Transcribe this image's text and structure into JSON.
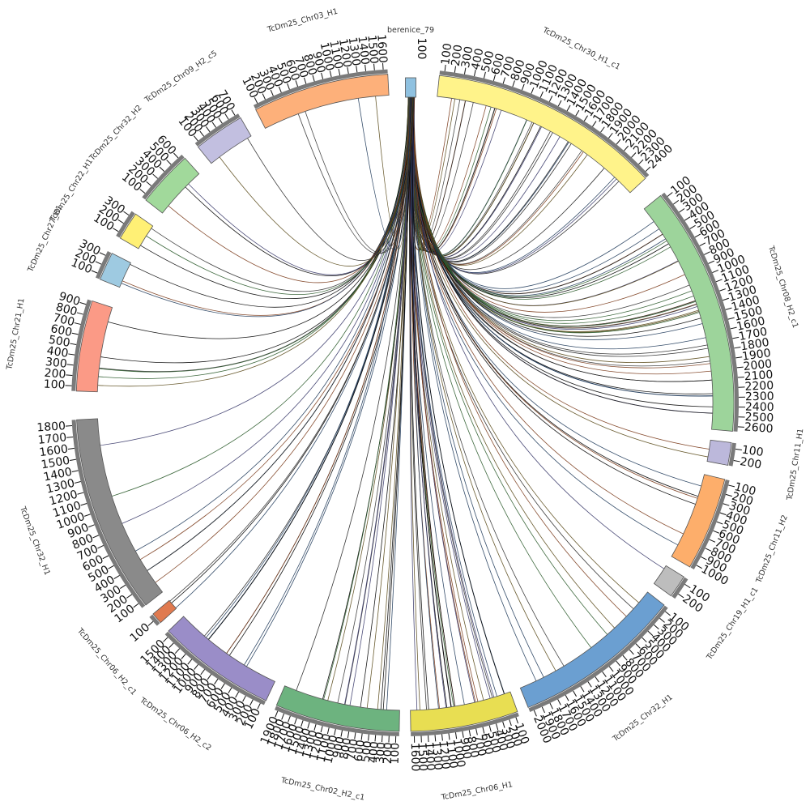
{
  "diagram": {
    "type": "circos",
    "hub": {
      "name": "berenice_79",
      "ticks": [
        "100"
      ],
      "color": "#8fc1e0"
    },
    "segments": [
      {
        "name": "TcDm25_Chr30_H1_c1",
        "start_deg": 6,
        "end_deg": 47,
        "color": "#fff38a",
        "ticks": [
          "100",
          "200",
          "300",
          "400",
          "500",
          "600",
          "700",
          "800",
          "900",
          "1000",
          "1100",
          "1200",
          "1300",
          "1400",
          "1500",
          "1600",
          "1700",
          "1800",
          "1900",
          "2000",
          "2100",
          "2200",
          "2300",
          "2400"
        ]
      },
      {
        "name": "TcDm25_Chr08_H2_c1",
        "start_deg": 51,
        "end_deg": 95,
        "color": "#9dd49b",
        "ticks": [
          "100",
          "200",
          "300",
          "400",
          "500",
          "600",
          "700",
          "800",
          "900",
          "1000",
          "1100",
          "1200",
          "1300",
          "1400",
          "1500",
          "1600",
          "1700",
          "1800",
          "1900",
          "2000",
          "2100",
          "2200",
          "2300",
          "2400",
          "2500",
          "2600"
        ]
      },
      {
        "name": "TcDm25_Chr11_H1",
        "start_deg": 97,
        "end_deg": 101,
        "color": "#bcb8db",
        "ticks": [
          "100",
          "200"
        ]
      },
      {
        "name": "TcDm25_Chr11_H2",
        "start_deg": 103.5,
        "end_deg": 120,
        "color": "#fdae6b",
        "ticks": [
          "100",
          "200",
          "300",
          "400",
          "500",
          "600",
          "700",
          "800",
          "900",
          "1000"
        ]
      },
      {
        "name": "TcDm25_Chr19_H1_c1",
        "start_deg": 122,
        "end_deg": 126,
        "color": "#bdbdbd",
        "ticks": [
          "100",
          "200"
        ]
      },
      {
        "name": "TcDm25_Chr32_H1",
        "start_deg": 128,
        "end_deg": 158,
        "color": "#6b9fd1",
        "ticks": [
          "100",
          "200",
          "300",
          "400",
          "500",
          "600",
          "700",
          "800",
          "900",
          "1000",
          "1100",
          "1200",
          "1300",
          "1400",
          "1500",
          "1600",
          "1700",
          "1800",
          "1900",
          "2000"
        ]
      },
      {
        "name": "TcDm25_Chr06_H1",
        "start_deg": 160,
        "end_deg": 179,
        "color": "#e8de52",
        "ticks": [
          "100",
          "200",
          "300",
          "400",
          "500",
          "600",
          "700",
          "800",
          "900",
          "1000",
          "1100",
          "1200",
          "1300",
          "1400",
          "1500",
          "1600"
        ]
      },
      {
        "name": "TcDm25_Chr02_H2_c1",
        "start_deg": 181,
        "end_deg": 203,
        "color": "#6db37f",
        "ticks": [
          "100",
          "200",
          "300",
          "400",
          "500",
          "600",
          "700",
          "800",
          "900",
          "1000",
          "1100",
          "1200",
          "1300",
          "1400",
          "1500",
          "1600",
          "1700",
          "1800",
          "1900"
        ]
      },
      {
        "name": "TcDm25_Chr06_H2_c2",
        "start_deg": 205,
        "end_deg": 226,
        "color": "#9a8dc8",
        "ticks": [
          "100",
          "200",
          "300",
          "400",
          "500",
          "600",
          "700",
          "800",
          "900",
          "1000",
          "1100",
          "1200",
          "1300",
          "1400",
          "1500"
        ]
      },
      {
        "name": "TcDm25_Chr06_H2_c1",
        "start_deg": 228,
        "end_deg": 230,
        "color": "#e07a4f",
        "ticks": [
          "100"
        ]
      },
      {
        "name": "TcDm25_Chr32_H1",
        "start_deg": 232,
        "end_deg": 267,
        "color": "#8a8a8a",
        "ticks": [
          "100",
          "200",
          "300",
          "400",
          "500",
          "600",
          "700",
          "800",
          "900",
          "1000",
          "1100",
          "1200",
          "1300",
          "1400",
          "1500",
          "1600",
          "1700",
          "1800"
        ]
      },
      {
        "name": "TcDm25_Chr21_H1",
        "start_deg": 272,
        "end_deg": 288,
        "color": "#fb9a86",
        "ticks": [
          "100",
          "200",
          "300",
          "400",
          "500",
          "600",
          "700",
          "800",
          "900"
        ]
      },
      {
        "name": "TcDm25_Chr27_H1",
        "start_deg": 292,
        "end_deg": 297,
        "color": "#9ecae1",
        "ticks": [
          "100",
          "200",
          "300"
        ]
      },
      {
        "name": "TcDm25_Chr22_H1",
        "start_deg": 300,
        "end_deg": 305,
        "color": "#fff075",
        "ticks": [
          "100",
          "200",
          "300"
        ]
      },
      {
        "name": "TcDm25_Chr32_H2",
        "start_deg": 308,
        "end_deg": 318,
        "color": "#a1d99b",
        "ticks": [
          "100",
          "200",
          "300",
          "400",
          "500",
          "600"
        ]
      },
      {
        "name": "TcDm25_Chr09_H2_c5",
        "start_deg": 321,
        "end_deg": 330,
        "color": "#c2bfe0",
        "ticks": [
          "100",
          "200",
          "300",
          "400",
          "500",
          "600",
          "700"
        ]
      },
      {
        "name": "TcDm25_Chr03_H1",
        "start_deg": 333,
        "end_deg": 357,
        "color": "#fdb07a",
        "ticks": [
          "100",
          "200",
          "300",
          "400",
          "500",
          "600",
          "700",
          "800",
          "900",
          "1000",
          "1100",
          "1200",
          "1300",
          "1400",
          "1500",
          "1600"
        ]
      }
    ],
    "link_counts": [
      32,
      40,
      2,
      6,
      1,
      10,
      24,
      14,
      9,
      3,
      8,
      6,
      3,
      3,
      3,
      2,
      4
    ],
    "link_colors": [
      "#000000",
      "#222222",
      "#5a4a1a",
      "#1f3a5a",
      "#7a3a1a",
      "#2a5a2a",
      "#3a3a6a",
      "#333333"
    ]
  }
}
